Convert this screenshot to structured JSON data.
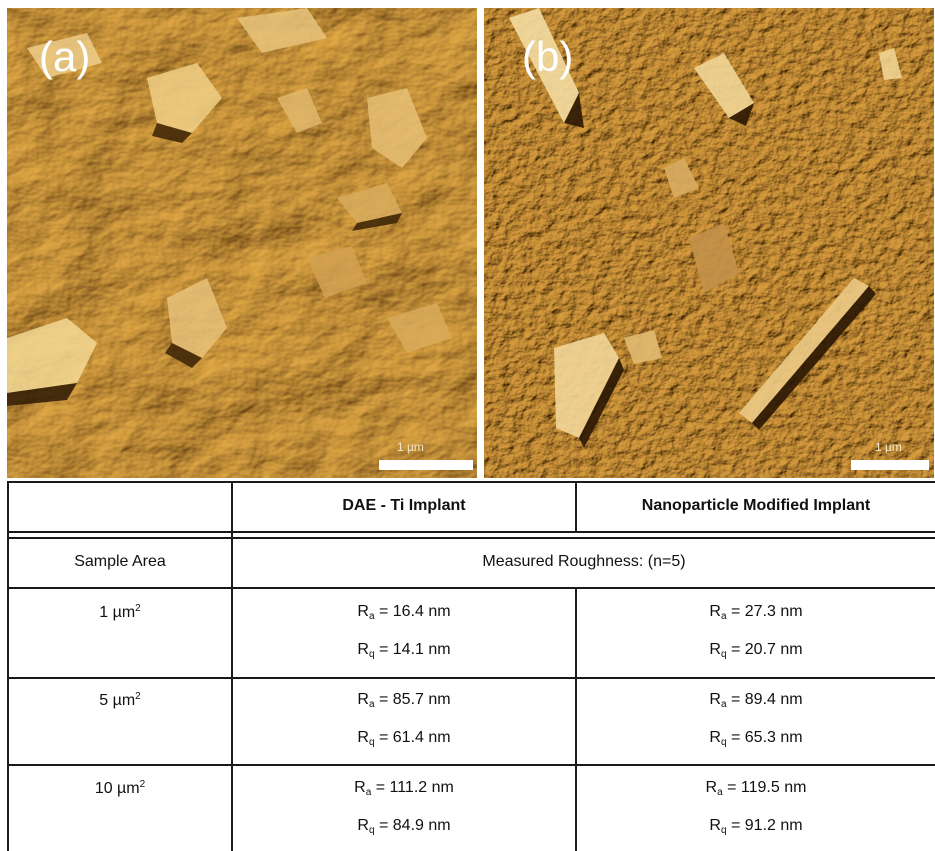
{
  "panels": {
    "a": {
      "label": "(a)",
      "scale_bar": "1 µm"
    },
    "b": {
      "label": "(b)",
      "scale_bar": "1 µm"
    }
  },
  "table": {
    "corner_header": "",
    "col_headers": [
      "DAE - Ti Implant",
      "Nanoparticle Modified Implant"
    ],
    "row_header_label": "Sample Area",
    "spanning_label": "Measured Roughness: (n=5)",
    "unit_suffix": "2",
    "rows": [
      {
        "area": "1 µm",
        "dae": {
          "ra": "=  16.4 nm",
          "rq": "= 14.1 nm"
        },
        "nano": {
          "ra": "= 27.3 nm",
          "rq": "= 20.7 nm"
        }
      },
      {
        "area": "5 µm",
        "dae": {
          "ra": "= 85.7 nm",
          "rq": "= 61.4 nm"
        },
        "nano": {
          "ra": "= 89.4 nm",
          "rq": "= 65.3 nm"
        }
      },
      {
        "area": "10 µm",
        "dae": {
          "ra": "= 111.2 nm",
          "rq": "= 84.9 nm"
        },
        "nano": {
          "ra": "= 119.5 nm",
          "rq": "= 91.2 nm"
        }
      }
    ],
    "ra_symbol": "R",
    "ra_sub": "a",
    "rq_symbol": "R",
    "rq_sub": "q"
  },
  "colors": {
    "afm_base": "#9c6a1c",
    "afm_highlight": "#f5d89a",
    "afm_shadow": "#3a2206"
  }
}
